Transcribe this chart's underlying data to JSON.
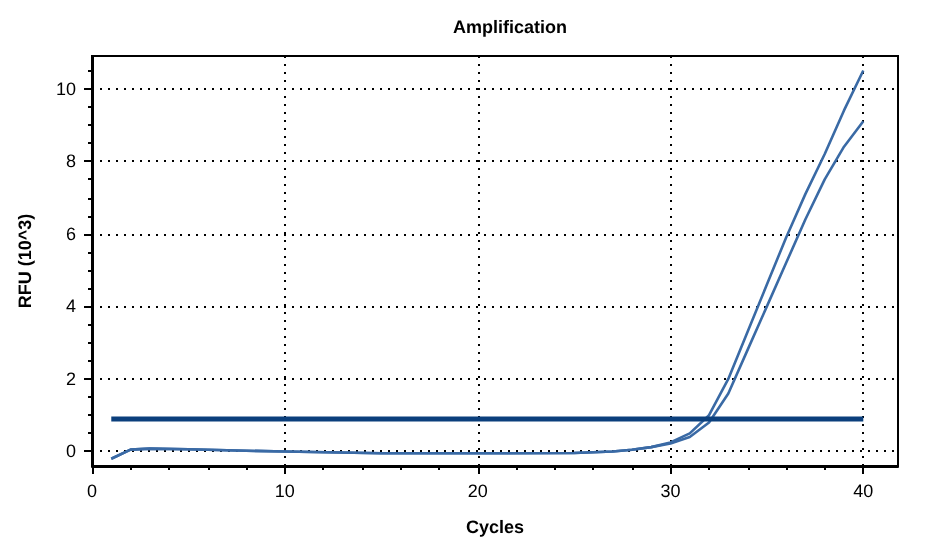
{
  "chart_data": {
    "type": "line",
    "title": "Amplification",
    "xlabel": "Cycles",
    "ylabel": "RFU (10^3)",
    "x": [
      1,
      2,
      3,
      5,
      8,
      10,
      15,
      20,
      25,
      27,
      28,
      29,
      30,
      31,
      32,
      33,
      34,
      35,
      36,
      37,
      38,
      39,
      40
    ],
    "series": [
      {
        "color": "#3a6aa5",
        "values": [
          -0.2,
          0.05,
          0.08,
          0.06,
          0.02,
          0,
          -0.05,
          -0.05,
          -0.04,
          0,
          0.05,
          0.12,
          0.25,
          0.5,
          1.0,
          2.0,
          3.3,
          4.6,
          5.9,
          7.1,
          8.2,
          9.4,
          10.5
        ]
      },
      {
        "color": "#3a6aa5",
        "values": [
          -0.2,
          0.05,
          0.08,
          0.06,
          0.02,
          0,
          -0.05,
          -0.05,
          -0.04,
          0,
          0.05,
          0.12,
          0.22,
          0.4,
          0.8,
          1.6,
          2.8,
          4.0,
          5.2,
          6.4,
          7.5,
          8.4,
          9.1
        ]
      }
    ],
    "xlim": [
      0,
      41.8
    ],
    "xticks": [
      0,
      10,
      20,
      30,
      40
    ],
    "ylim": [
      -0.4,
      10.9
    ],
    "yticks": [
      0,
      2,
      4,
      6,
      8,
      10
    ],
    "ref_lines": [
      {
        "axis": "y",
        "value": 0.9,
        "color": "#0b3f7c"
      }
    ],
    "grid": true,
    "marker": "none",
    "line_style": "solid"
  }
}
